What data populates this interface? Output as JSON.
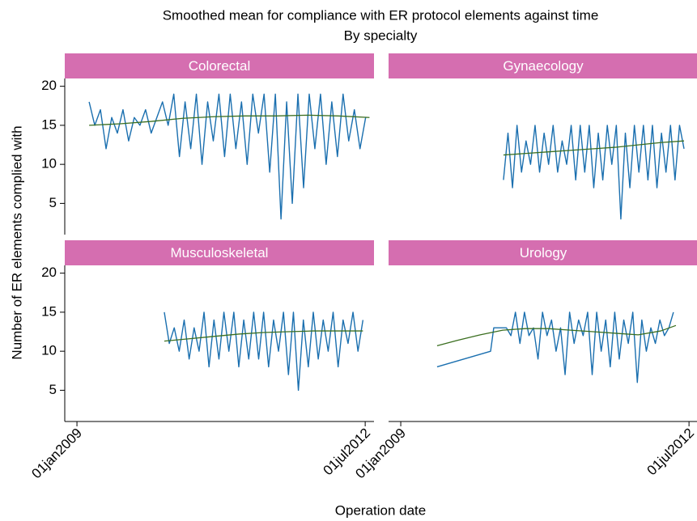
{
  "title": "Smoothed mean for compliance with ER protocol elements against time",
  "subtitle": "By specialty",
  "y_label": "Number of ER elements complied with",
  "x_label": "Operation date",
  "chart_data": [
    {
      "type": "line",
      "title": "Colorectal",
      "xlim": [
        17844,
        19214
      ],
      "ylim": [
        1,
        21
      ],
      "yticks": [
        5,
        10,
        15,
        20
      ],
      "series": [
        {
          "color": "#1a6faf",
          "x": [
            17952,
            17977,
            18002,
            18027,
            18052,
            18077,
            18102,
            18127,
            18152,
            18177,
            18202,
            18227,
            18252,
            18277,
            18302,
            18327,
            18352,
            18377,
            18402,
            18427,
            18452,
            18477,
            18502,
            18527,
            18552,
            18577,
            18602,
            18627,
            18652,
            18677,
            18702,
            18727,
            18752,
            18777,
            18802,
            18827,
            18852,
            18877,
            18902,
            18927,
            18952,
            18977,
            19002,
            19027,
            19052,
            19077,
            19102,
            19127,
            19152,
            19177
          ],
          "values": [
            18,
            15,
            17,
            12,
            16,
            14,
            17,
            13,
            16,
            15,
            17,
            14,
            16,
            18,
            15,
            19,
            11,
            18,
            12,
            19,
            10,
            18,
            13,
            19,
            11,
            19,
            12,
            18,
            10,
            19,
            14,
            19,
            9,
            19,
            3,
            18,
            5,
            19,
            7,
            19,
            12,
            19,
            10,
            18,
            11,
            19,
            13,
            17,
            12,
            16
          ]
        },
        {
          "color": "#3a6e1f",
          "x": [
            17952,
            18090,
            18228,
            18366,
            18504,
            18642,
            18780,
            18918,
            19056,
            19194
          ],
          "values": [
            15,
            15.2,
            15.5,
            15.9,
            16.1,
            16.2,
            16.2,
            16.3,
            16.2,
            16.0
          ]
        }
      ]
    },
    {
      "type": "line",
      "title": "Gynaecology",
      "xlim": [
        17844,
        19214
      ],
      "ylim": [
        1,
        21
      ],
      "series": [
        {
          "color": "#1a6faf",
          "x": [
            18353,
            18373,
            18393,
            18413,
            18433,
            18453,
            18473,
            18493,
            18513,
            18533,
            18553,
            18573,
            18593,
            18613,
            18633,
            18653,
            18673,
            18693,
            18713,
            18733,
            18753,
            18773,
            18793,
            18813,
            18833,
            18853,
            18873,
            18893,
            18913,
            18933,
            18953,
            18973,
            18993,
            19013,
            19033,
            19053,
            19073,
            19093,
            19113,
            19133,
            19153
          ],
          "values": [
            8,
            14,
            7,
            15,
            9,
            13,
            10,
            15,
            9,
            14,
            10,
            15,
            9,
            13,
            10,
            15,
            8,
            15,
            9,
            15,
            7,
            14,
            8,
            15,
            10,
            15,
            3,
            14,
            7,
            15,
            9,
            15,
            8,
            15,
            7,
            14,
            9,
            15,
            8,
            15,
            12
          ]
        },
        {
          "color": "#3a6e1f",
          "x": [
            18353,
            18453,
            18553,
            18653,
            18753,
            18853,
            18953,
            19053,
            19153
          ],
          "values": [
            11.2,
            11.4,
            11.6,
            11.8,
            12.0,
            12.2,
            12.5,
            12.8,
            13.0
          ]
        }
      ]
    },
    {
      "type": "line",
      "title": "Musculoskeletal",
      "xlim": [
        17844,
        19214
      ],
      "ylim": [
        1,
        21
      ],
      "yticks": [
        5,
        10,
        15,
        20
      ],
      "xticks": [
        {
          "value": 17898,
          "label": "01jan2009"
        },
        {
          "value": 19175,
          "label": "01jul2012"
        }
      ],
      "series": [
        {
          "color": "#1a6faf",
          "x": [
            18285,
            18307,
            18329,
            18351,
            18373,
            18395,
            18417,
            18439,
            18461,
            18483,
            18505,
            18527,
            18549,
            18571,
            18593,
            18615,
            18637,
            18659,
            18681,
            18703,
            18725,
            18747,
            18769,
            18791,
            18813,
            18835,
            18857,
            18879,
            18901,
            18923,
            18945,
            18967,
            18989,
            19011,
            19033,
            19055,
            19077,
            19099,
            19121,
            19143,
            19165
          ],
          "values": [
            15,
            11,
            13,
            10,
            14,
            9,
            13,
            10,
            15,
            8,
            14,
            9,
            15,
            10,
            15,
            8,
            14,
            9,
            15,
            9,
            15,
            8,
            14,
            10,
            15,
            7,
            15,
            5,
            14,
            8,
            15,
            9,
            14,
            10,
            15,
            8,
            14,
            11,
            15,
            10,
            14
          ]
        },
        {
          "color": "#3a6e1f",
          "x": [
            18285,
            18395,
            18505,
            18615,
            18725,
            18835,
            18945,
            19055,
            19165
          ],
          "values": [
            11.3,
            11.6,
            11.9,
            12.2,
            12.4,
            12.5,
            12.6,
            12.6,
            12.6
          ]
        }
      ]
    },
    {
      "type": "line",
      "title": "Urology",
      "xlim": [
        17844,
        19214
      ],
      "ylim": [
        1,
        21
      ],
      "xticks": [
        {
          "value": 17898,
          "label": "01jan2009"
        },
        {
          "value": 19175,
          "label": "01jul2012"
        }
      ],
      "series": [
        {
          "color": "#1a6faf",
          "x": [
            18059,
            18296,
            18310,
            18346,
            18366,
            18386,
            18406,
            18426,
            18446,
            18466,
            18486,
            18506,
            18526,
            18546,
            18566,
            18586,
            18606,
            18626,
            18646,
            18666,
            18686,
            18706,
            18726,
            18746,
            18766,
            18786,
            18806,
            18826,
            18846,
            18866,
            18886,
            18906,
            18926,
            18946,
            18966,
            18986,
            19006,
            19026,
            19046,
            19066,
            19086,
            19106
          ],
          "values": [
            8,
            10,
            13,
            13,
            13,
            12,
            15,
            11,
            15,
            12,
            13,
            9,
            15,
            12,
            14,
            10,
            13,
            7,
            15,
            11,
            14,
            12,
            15,
            7,
            15,
            10,
            14,
            8,
            15,
            9,
            14,
            11,
            15,
            6,
            14,
            10,
            13,
            11,
            14,
            12,
            13,
            15
          ]
        },
        {
          "color": "#3a6e1f",
          "x": [
            18059,
            18150,
            18250,
            18350,
            18450,
            18550,
            18650,
            18750,
            18850,
            18950,
            19050,
            19117
          ],
          "values": [
            10.7,
            11.4,
            12.1,
            12.7,
            12.9,
            12.9,
            12.7,
            12.5,
            12.3,
            12.1,
            12.6,
            13.3
          ]
        }
      ]
    }
  ]
}
